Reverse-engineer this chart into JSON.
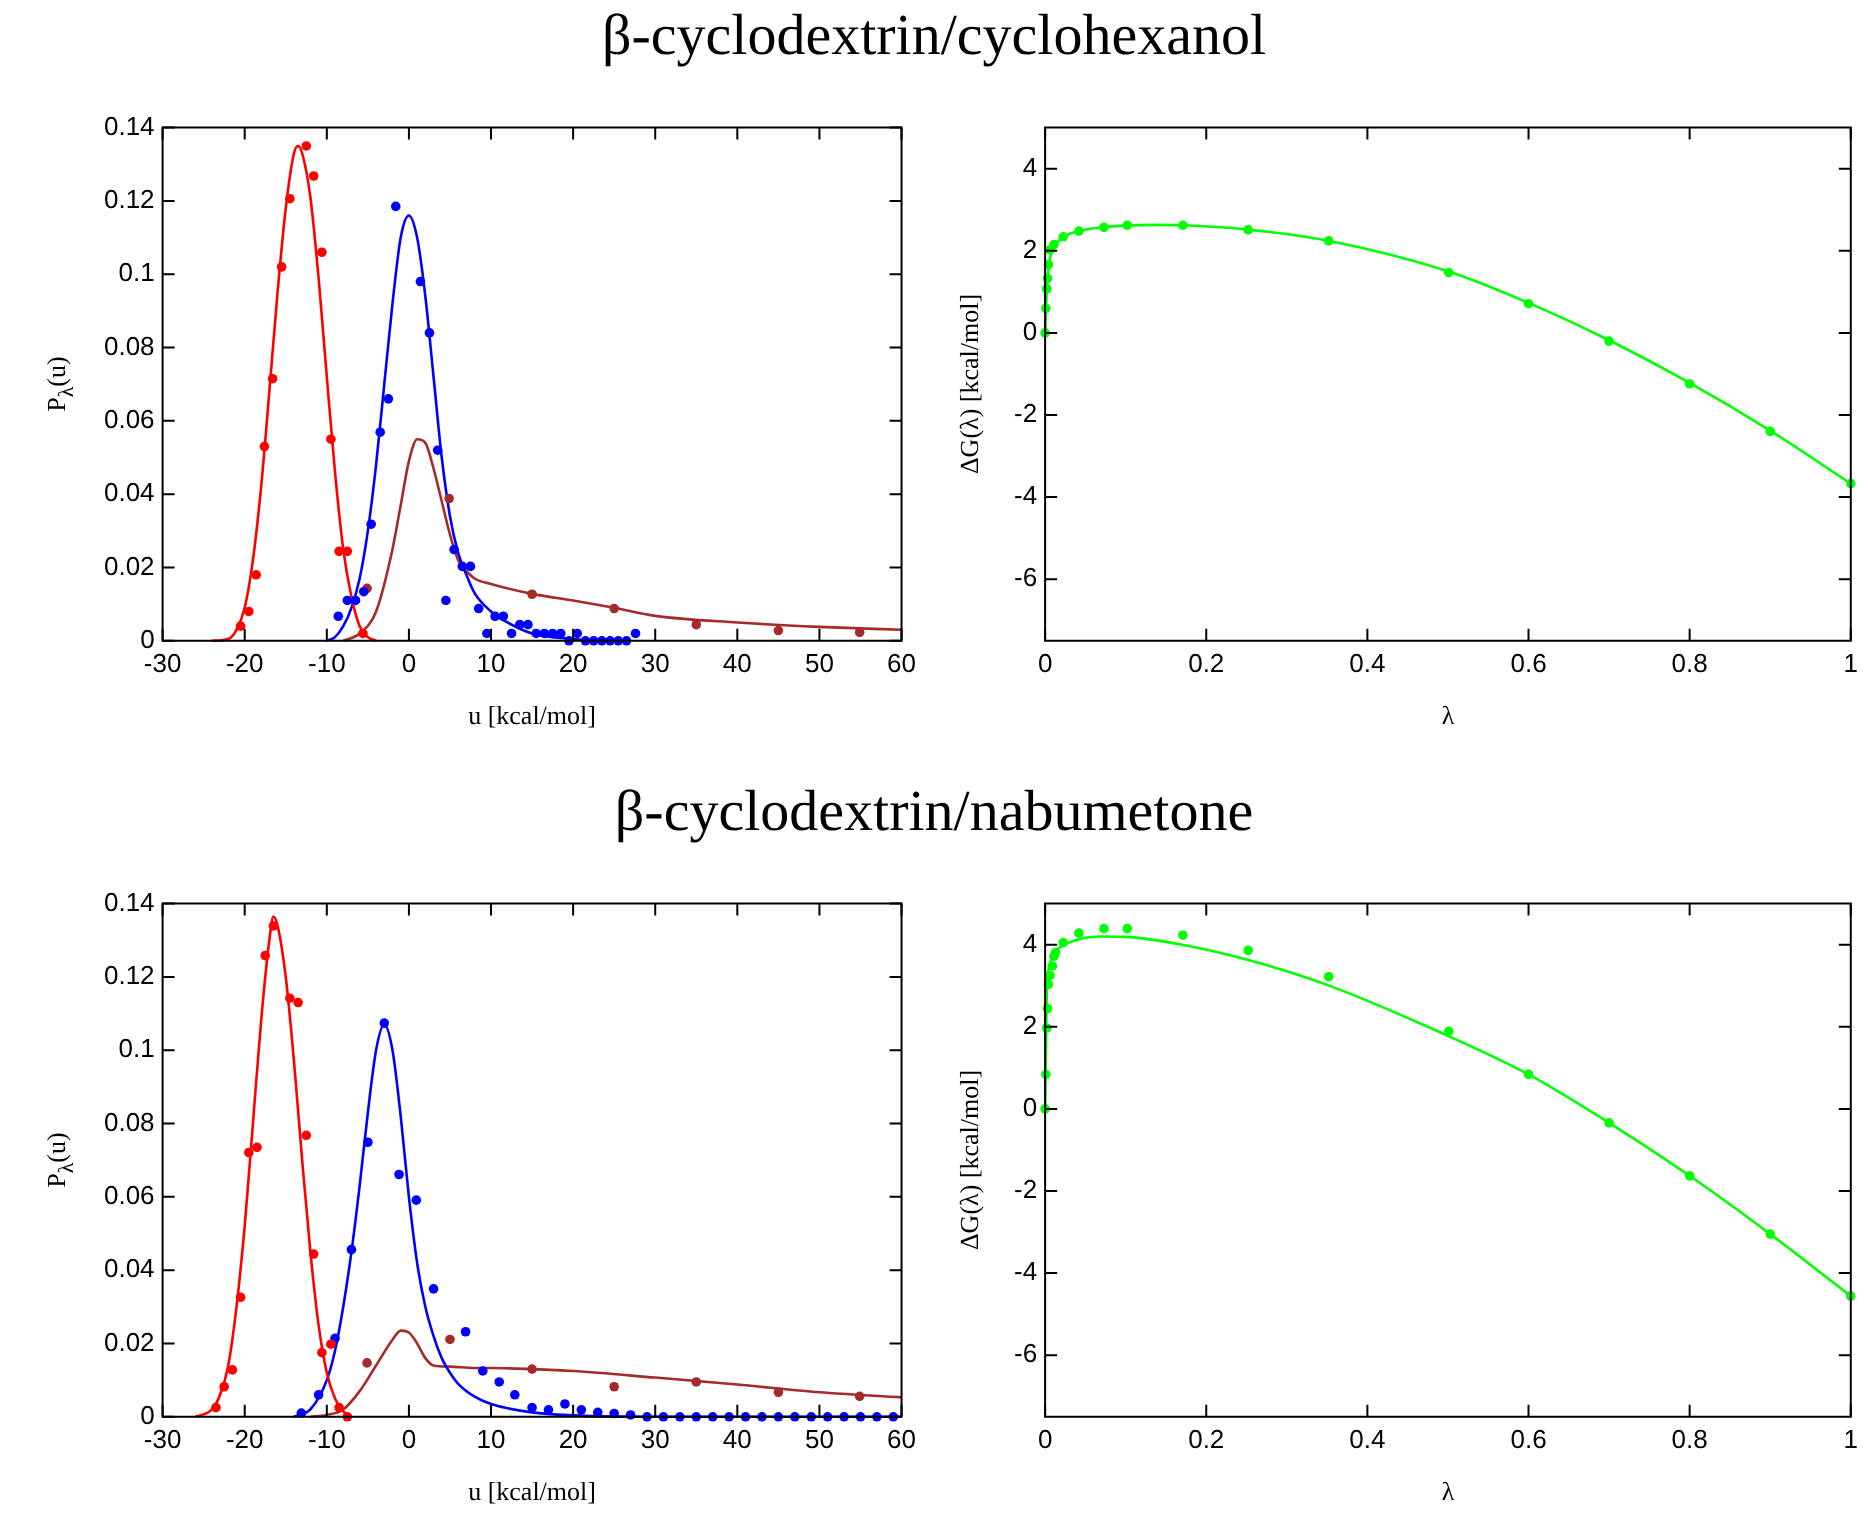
{
  "chart_data": [
    {
      "type": "scatter",
      "title": "β-cyclodextrin/cyclohexanol",
      "xlabel": "u [kcal/mol]",
      "ylabel": "P$_{λ}$(u)",
      "xlim": [
        -30,
        60
      ],
      "xticks": [
        -30,
        -20,
        -10,
        0,
        10,
        20,
        30,
        40,
        50,
        60
      ],
      "ylim": [
        0,
        0.14
      ],
      "yticks": [
        0,
        0.02,
        0.04,
        0.06,
        0.08,
        0.1,
        0.12,
        0.14
      ],
      "series": [
        {
          "type": "scatter",
          "marker": "circle",
          "color": "#ff0000",
          "x": [
            -20.5,
            -19.5,
            -18.6,
            -17.6,
            -16.6,
            -15.5,
            -14.5,
            -12.5,
            -11.6,
            -10.6,
            -9.5,
            -8.5,
            -7.5,
            -6.5,
            -5.6
          ],
          "values": [
            0.004,
            0.008,
            0.018,
            0.053,
            0.0715,
            0.102,
            0.1206,
            0.135,
            0.1268,
            0.106,
            0.055,
            0.0244,
            0.0244,
            null,
            0.002
          ]
        },
        {
          "type": "line",
          "marker": "none",
          "color": "#ff0000",
          "x": [
            -24,
            -22,
            -21,
            -20,
            -19,
            -18,
            -17,
            -16,
            -15,
            -14,
            -13.5,
            -13,
            -12,
            -11,
            -10,
            -9,
            -8,
            -7,
            -6,
            -5,
            -4
          ],
          "values": [
            0,
            0.0005,
            0.003,
            0.009,
            0.022,
            0.042,
            0.068,
            0.095,
            0.118,
            0.133,
            0.135,
            0.133,
            0.121,
            0.099,
            0.072,
            0.046,
            0.025,
            0.012,
            0.004,
            0.001,
            0
          ]
        },
        {
          "type": "scatter",
          "marker": "circle",
          "color": "#0000ff",
          "x": [
            -8.6,
            -7.5,
            -6.5,
            -5.5,
            -4.6,
            -3.5,
            -2.5,
            -1.6,
            1.4,
            2.5,
            3.5,
            4.5,
            5.5,
            6.5,
            7.5,
            8.5,
            9.5,
            10.5,
            11.5,
            12.5,
            13.5,
            14.5,
            15.5,
            16.5,
            17.5,
            18.5,
            19.5,
            20.5,
            21.5,
            22.5,
            23.5,
            24.5,
            25.5,
            26.5,
            27.6
          ],
          "values": [
            0.0067,
            0.011,
            0.011,
            0.0134,
            0.0318,
            0.0569,
            0.066,
            0.1185,
            0.098,
            0.084,
            0.052,
            0.011,
            0.0249,
            0.0203,
            0.0203,
            0.0088,
            0.002,
            0.0067,
            0.0067,
            0.002,
            0.0044,
            0.0044,
            0.002,
            0.002,
            0.002,
            0.002,
            0,
            0.002,
            0,
            0,
            0,
            0,
            0,
            0,
            0.002
          ]
        },
        {
          "type": "line",
          "marker": "none",
          "color": "#0000ff",
          "x": [
            -10,
            -9,
            -8,
            -7,
            -6,
            -5,
            -4,
            -3,
            -2,
            -1,
            0,
            1,
            2,
            3,
            4,
            5,
            6,
            7,
            8,
            10,
            12,
            15,
            20,
            25
          ],
          "values": [
            0,
            0.001,
            0.004,
            0.009,
            0.017,
            0.03,
            0.048,
            0.07,
            0.092,
            0.11,
            0.116,
            0.11,
            0.094,
            0.072,
            0.05,
            0.034,
            0.024,
            0.018,
            0.013,
            0.008,
            0.005,
            0.002,
            0.0005,
            0
          ]
        },
        {
          "type": "scatter",
          "marker": "circle",
          "color": "#a52a2a",
          "x": [
            -5.1,
            4.9,
            15,
            25,
            35,
            45,
            54.9
          ],
          "values": [
            0.0143,
            0.0388,
            0.0127,
            0.0088,
            0.0044,
            0.0028,
            0.0023
          ]
        },
        {
          "type": "line",
          "marker": "none",
          "color": "#a52a2a",
          "x": [
            -8,
            -6,
            -4,
            -2,
            -1,
            0,
            1,
            2,
            3,
            4,
            5,
            6,
            7,
            8,
            10,
            15,
            20,
            25,
            30,
            40,
            50,
            60
          ],
          "values": [
            0,
            0.002,
            0.008,
            0.025,
            0.037,
            0.049,
            0.055,
            0.054,
            0.047,
            0.038,
            0.029,
            0.022,
            0.019,
            0.017,
            0.0155,
            0.0128,
            0.011,
            0.009,
            0.0068,
            0.005,
            0.0038,
            0.003
          ]
        }
      ]
    },
    {
      "type": "scatter",
      "xlabel": "λ",
      "ylabel": "ΔG(λ) [kcal/mol]",
      "xlim": [
        0,
        1
      ],
      "xticks": [
        0,
        0.2,
        0.4,
        0.6,
        0.8,
        1
      ],
      "ylim": [
        -7.5,
        5
      ],
      "yticks": [
        -6,
        -4,
        -2,
        0,
        2,
        4
      ],
      "series": [
        {
          "type": "scatter",
          "marker": "circle",
          "color": "#00ff00",
          "x": [
            0,
            0.001,
            0.002,
            0.003,
            0.004,
            0.006,
            0.011,
            0.0225,
            0.042,
            0.073,
            0.102,
            0.171,
            0.252,
            0.352,
            0.501,
            0.6,
            0.7,
            0.8,
            0.9,
            1
          ],
          "values": [
            0,
            0.6,
            1.07,
            1.33,
            1.66,
            2.02,
            2.15,
            2.34,
            2.48,
            2.57,
            2.62,
            2.62,
            2.51,
            2.24,
            1.47,
            0.71,
            -0.2,
            -1.24,
            -2.4,
            -3.67
          ]
        },
        {
          "type": "line",
          "marker": "none",
          "color": "#00ff00",
          "x": [
            0,
            0.002,
            0.005,
            0.01,
            0.02,
            0.04,
            0.07,
            0.1,
            0.13,
            0.17,
            0.25,
            0.35,
            0.5,
            0.6,
            0.7,
            0.8,
            0.9,
            1
          ],
          "values": [
            0,
            1,
            1.7,
            2.05,
            2.3,
            2.47,
            2.57,
            2.61,
            2.63,
            2.62,
            2.52,
            2.25,
            1.5,
            0.73,
            -0.18,
            -1.22,
            -2.38,
            -3.67
          ]
        }
      ]
    },
    {
      "type": "scatter",
      "title": "β-cyclodextrin/nabumetone",
      "xlabel": "u [kcal/mol]",
      "ylabel": "P$_{λ}$(u)",
      "xlim": [
        -30,
        60
      ],
      "xticks": [
        -30,
        -20,
        -10,
        0,
        10,
        20,
        30,
        40,
        50,
        60
      ],
      "ylim": [
        0,
        0.14
      ],
      "yticks": [
        0,
        0.02,
        0.04,
        0.06,
        0.08,
        0.1,
        0.12,
        0.14
      ],
      "series": [
        {
          "type": "scatter",
          "marker": "circle",
          "color": "#ff0000",
          "x": [
            -23.5,
            -22.5,
            -21.5,
            -20.5,
            -19.5,
            -18.5,
            -17.5,
            -16.5,
            -14.5,
            -13.5,
            -12.5,
            -11.6,
            -10.6,
            -9.5,
            -8.5,
            -7.5
          ],
          "values": [
            0.0025,
            0.0082,
            0.0128,
            0.0326,
            0.0721,
            0.0735,
            0.1258,
            0.1339,
            0.1142,
            0.113,
            0.0768,
            0.0444,
            0.0175,
            0.0198,
            0.0025,
            0
          ]
        },
        {
          "type": "line",
          "marker": "none",
          "color": "#ff0000",
          "x": [
            -26,
            -24,
            -23,
            -22,
            -21,
            -20,
            -19,
            -18,
            -17,
            -16.5,
            -16,
            -15,
            -14,
            -13,
            -12,
            -11,
            -10,
            -9,
            -8,
            -7
          ],
          "values": [
            0,
            0.002,
            0.006,
            0.014,
            0.03,
            0.052,
            0.08,
            0.108,
            0.13,
            0.1365,
            0.134,
            0.12,
            0.097,
            0.07,
            0.045,
            0.025,
            0.012,
            0.005,
            0.0015,
            0
          ]
        },
        {
          "type": "scatter",
          "marker": "circle",
          "color": "#0000ff",
          "x": [
            -13.1,
            -11,
            -9,
            -7,
            -5,
            -3,
            -1.2,
            0.9,
            3,
            5,
            6.9,
            9,
            11,
            12.9,
            15,
            17,
            19,
            21,
            23,
            25,
            27,
            29,
            31,
            33,
            35,
            37,
            39,
            41,
            43,
            45,
            47,
            49,
            51,
            53,
            55,
            57,
            59
          ],
          "values": [
            0.001,
            0.006,
            0.0214,
            0.0456,
            0.0749,
            0.1074,
            0.0661,
            0.0591,
            0.0349,
            null,
            0.0232,
            0.0125,
            0.0095,
            0.006,
            0.0025,
            0.0019,
            0.0035,
            0.0019,
            0.0012,
            0.0009,
            0.0005,
            0,
            0,
            0,
            0,
            0,
            0,
            0,
            0,
            0,
            0,
            0,
            0,
            0,
            0,
            0,
            0
          ]
        },
        {
          "type": "line",
          "marker": "none",
          "color": "#0000ff",
          "x": [
            -14,
            -12,
            -10,
            -9,
            -8,
            -7,
            -6,
            -5,
            -4,
            -3,
            -2,
            -1,
            0,
            1,
            2,
            3,
            4,
            5,
            6,
            8,
            10,
            15,
            20,
            30,
            60
          ],
          "values": [
            0,
            0.002,
            0.01,
            0.018,
            0.03,
            0.045,
            0.063,
            0.083,
            0.1,
            0.107,
            0.1,
            0.082,
            0.06,
            0.042,
            0.03,
            0.022,
            0.016,
            0.012,
            0.009,
            0.0055,
            0.0035,
            0.0012,
            0.0004,
            0,
            0
          ]
        },
        {
          "type": "scatter",
          "marker": "circle",
          "color": "#a52a2a",
          "x": [
            -5.1,
            5,
            15,
            25,
            35,
            45,
            54.9
          ],
          "values": [
            0.0147,
            0.0211,
            0.013,
            0.0082,
            0.0095,
            0.0067,
            0.0056
          ]
        },
        {
          "type": "line",
          "marker": "none",
          "color": "#a52a2a",
          "x": [
            -12,
            -10,
            -8,
            -6,
            -4,
            -2,
            -1,
            0,
            1,
            2,
            3,
            5,
            8,
            10,
            15,
            20,
            30,
            40,
            50,
            60
          ],
          "values": [
            0,
            0.0005,
            0.002,
            0.007,
            0.014,
            0.021,
            0.0235,
            0.023,
            0.02,
            0.016,
            0.014,
            0.0137,
            0.0133,
            0.0133,
            0.013,
            0.0125,
            0.0107,
            0.0088,
            0.0067,
            0.0053
          ]
        }
      ]
    },
    {
      "type": "scatter",
      "xlabel": "λ",
      "ylabel": "ΔG(λ) [kcal/mol]",
      "xlim": [
        0,
        1
      ],
      "xticks": [
        0,
        0.2,
        0.4,
        0.6,
        0.8,
        1
      ],
      "ylim": [
        -7.5,
        5
      ],
      "yticks": [
        -6,
        -4,
        -2,
        0,
        2,
        4
      ],
      "series": [
        {
          "type": "scatter",
          "marker": "circle",
          "color": "#00ff00",
          "x": [
            0,
            0.001,
            0.002,
            0.003,
            0.004,
            0.006,
            0.009,
            0.011,
            0.013,
            0.0225,
            0.042,
            0.073,
            0.102,
            0.171,
            0.252,
            0.352,
            0.501,
            0.6,
            0.7,
            0.8,
            0.9,
            1
          ],
          "values": [
            0,
            0.84,
            1.97,
            2.44,
            3.03,
            3.25,
            3.48,
            3.72,
            3.81,
            4.05,
            4.28,
            4.39,
            4.39,
            4.23,
            3.86,
            3.22,
            1.89,
            0.84,
            -0.34,
            -1.63,
            -3.05,
            -4.56
          ]
        },
        {
          "type": "line",
          "marker": "none",
          "color": "#00ff00",
          "x": [
            0,
            0.002,
            0.005,
            0.01,
            0.02,
            0.04,
            0.07,
            0.1,
            0.17,
            0.25,
            0.35,
            0.5,
            0.6,
            0.7,
            0.8,
            0.9,
            1
          ],
          "values": [
            0,
            2.8,
            3.45,
            3.77,
            3.95,
            4.12,
            4.2,
            4.19,
            4,
            3.64,
            3.02,
            1.78,
            0.84,
            -0.34,
            -1.63,
            -3.05,
            -4.56
          ]
        }
      ]
    }
  ]
}
